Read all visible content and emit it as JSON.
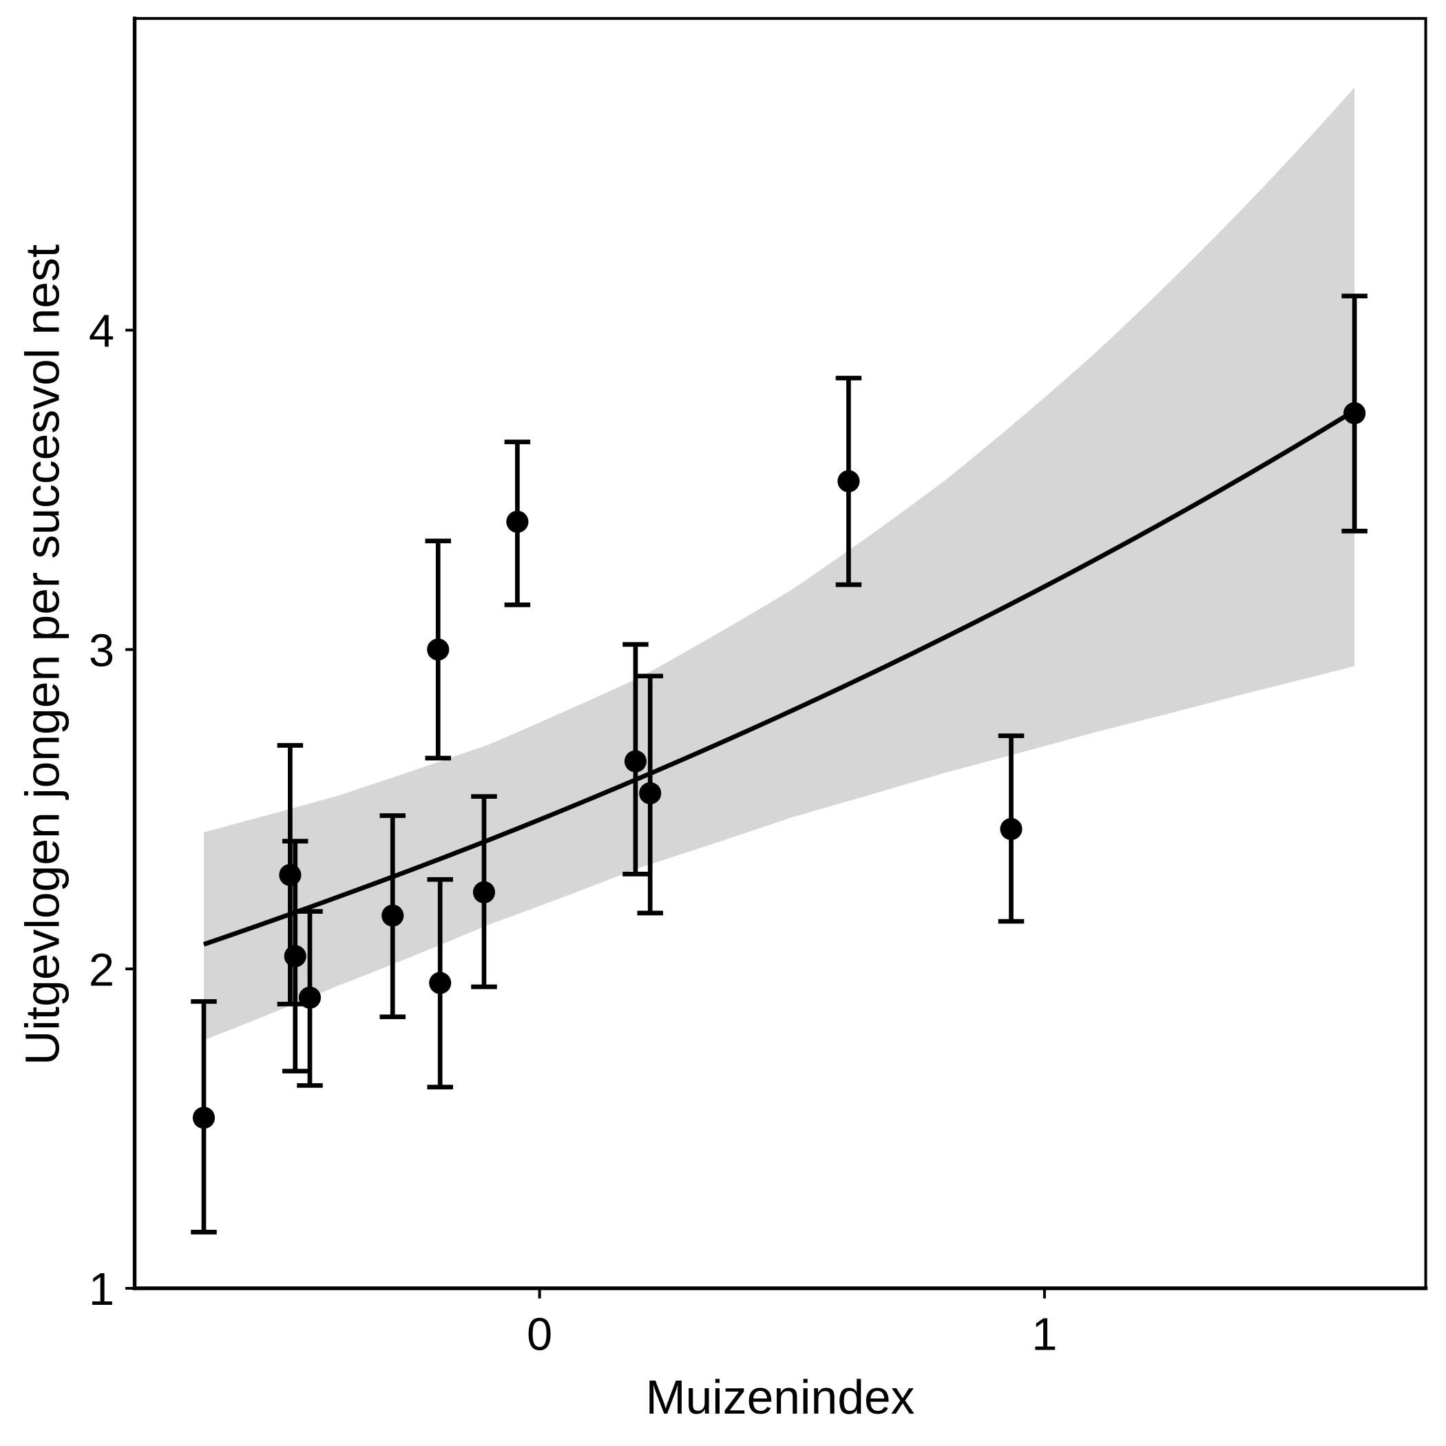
{
  "chart_data": {
    "type": "scatter",
    "title": "",
    "xlabel": "Muizenindex",
    "ylabel": "Uitgevlogen jongen per succesvol nest",
    "xlim": [
      -0.802,
      1.755
    ],
    "ylim": [
      1,
      4.976
    ],
    "x_ticks": [
      {
        "value": 0,
        "label": "0"
      },
      {
        "value": 1,
        "label": "1"
      }
    ],
    "y_ticks": [
      {
        "value": 1,
        "label": "1"
      },
      {
        "value": 2,
        "label": "2"
      },
      {
        "value": 3,
        "label": "3"
      },
      {
        "value": 4,
        "label": "4"
      }
    ],
    "grid": false,
    "legend": "none",
    "points": [
      {
        "x": -0.665,
        "y": 1.534,
        "lo": 1.176,
        "hi": 1.898
      },
      {
        "x": -0.494,
        "y": 2.294,
        "lo": 1.89,
        "hi": 2.7
      },
      {
        "x": -0.484,
        "y": 2.04,
        "lo": 1.68,
        "hi": 2.4
      },
      {
        "x": -0.455,
        "y": 1.91,
        "lo": 1.635,
        "hi": 2.18
      },
      {
        "x": -0.291,
        "y": 2.167,
        "lo": 1.85,
        "hi": 2.48
      },
      {
        "x": -0.201,
        "y": 3.0,
        "lo": 2.66,
        "hi": 3.34
      },
      {
        "x": -0.197,
        "y": 1.956,
        "lo": 1.63,
        "hi": 2.28
      },
      {
        "x": -0.11,
        "y": 2.24,
        "lo": 1.944,
        "hi": 2.54
      },
      {
        "x": -0.044,
        "y": 3.4,
        "lo": 3.14,
        "hi": 3.65
      },
      {
        "x": 0.19,
        "y": 2.65,
        "lo": 2.297,
        "hi": 3.016
      },
      {
        "x": 0.219,
        "y": 2.55,
        "lo": 2.175,
        "hi": 2.917
      },
      {
        "x": 0.612,
        "y": 3.527,
        "lo": 3.203,
        "hi": 3.85
      },
      {
        "x": 0.934,
        "y": 2.438,
        "lo": 2.149,
        "hi": 2.73
      },
      {
        "x": 1.614,
        "y": 3.74,
        "lo": 3.371,
        "hi": 4.107
      }
    ],
    "fit": {
      "x": [
        -0.665,
        -0.4,
        -0.1,
        0.2,
        0.5,
        0.8,
        1.1,
        1.4,
        1.614
      ],
      "y": [
        2.077,
        2.225,
        2.404,
        2.599,
        2.809,
        3.036,
        3.281,
        3.546,
        3.748
      ],
      "lower": [
        1.777,
        1.947,
        2.139,
        2.318,
        2.475,
        2.613,
        2.741,
        2.863,
        2.948
      ],
      "upper": [
        2.428,
        2.542,
        2.703,
        2.914,
        3.188,
        3.526,
        3.928,
        4.393,
        4.76
      ]
    },
    "colors": {
      "ribbon": "#d6d6d6",
      "line": "#000000",
      "points": "#000000"
    }
  }
}
